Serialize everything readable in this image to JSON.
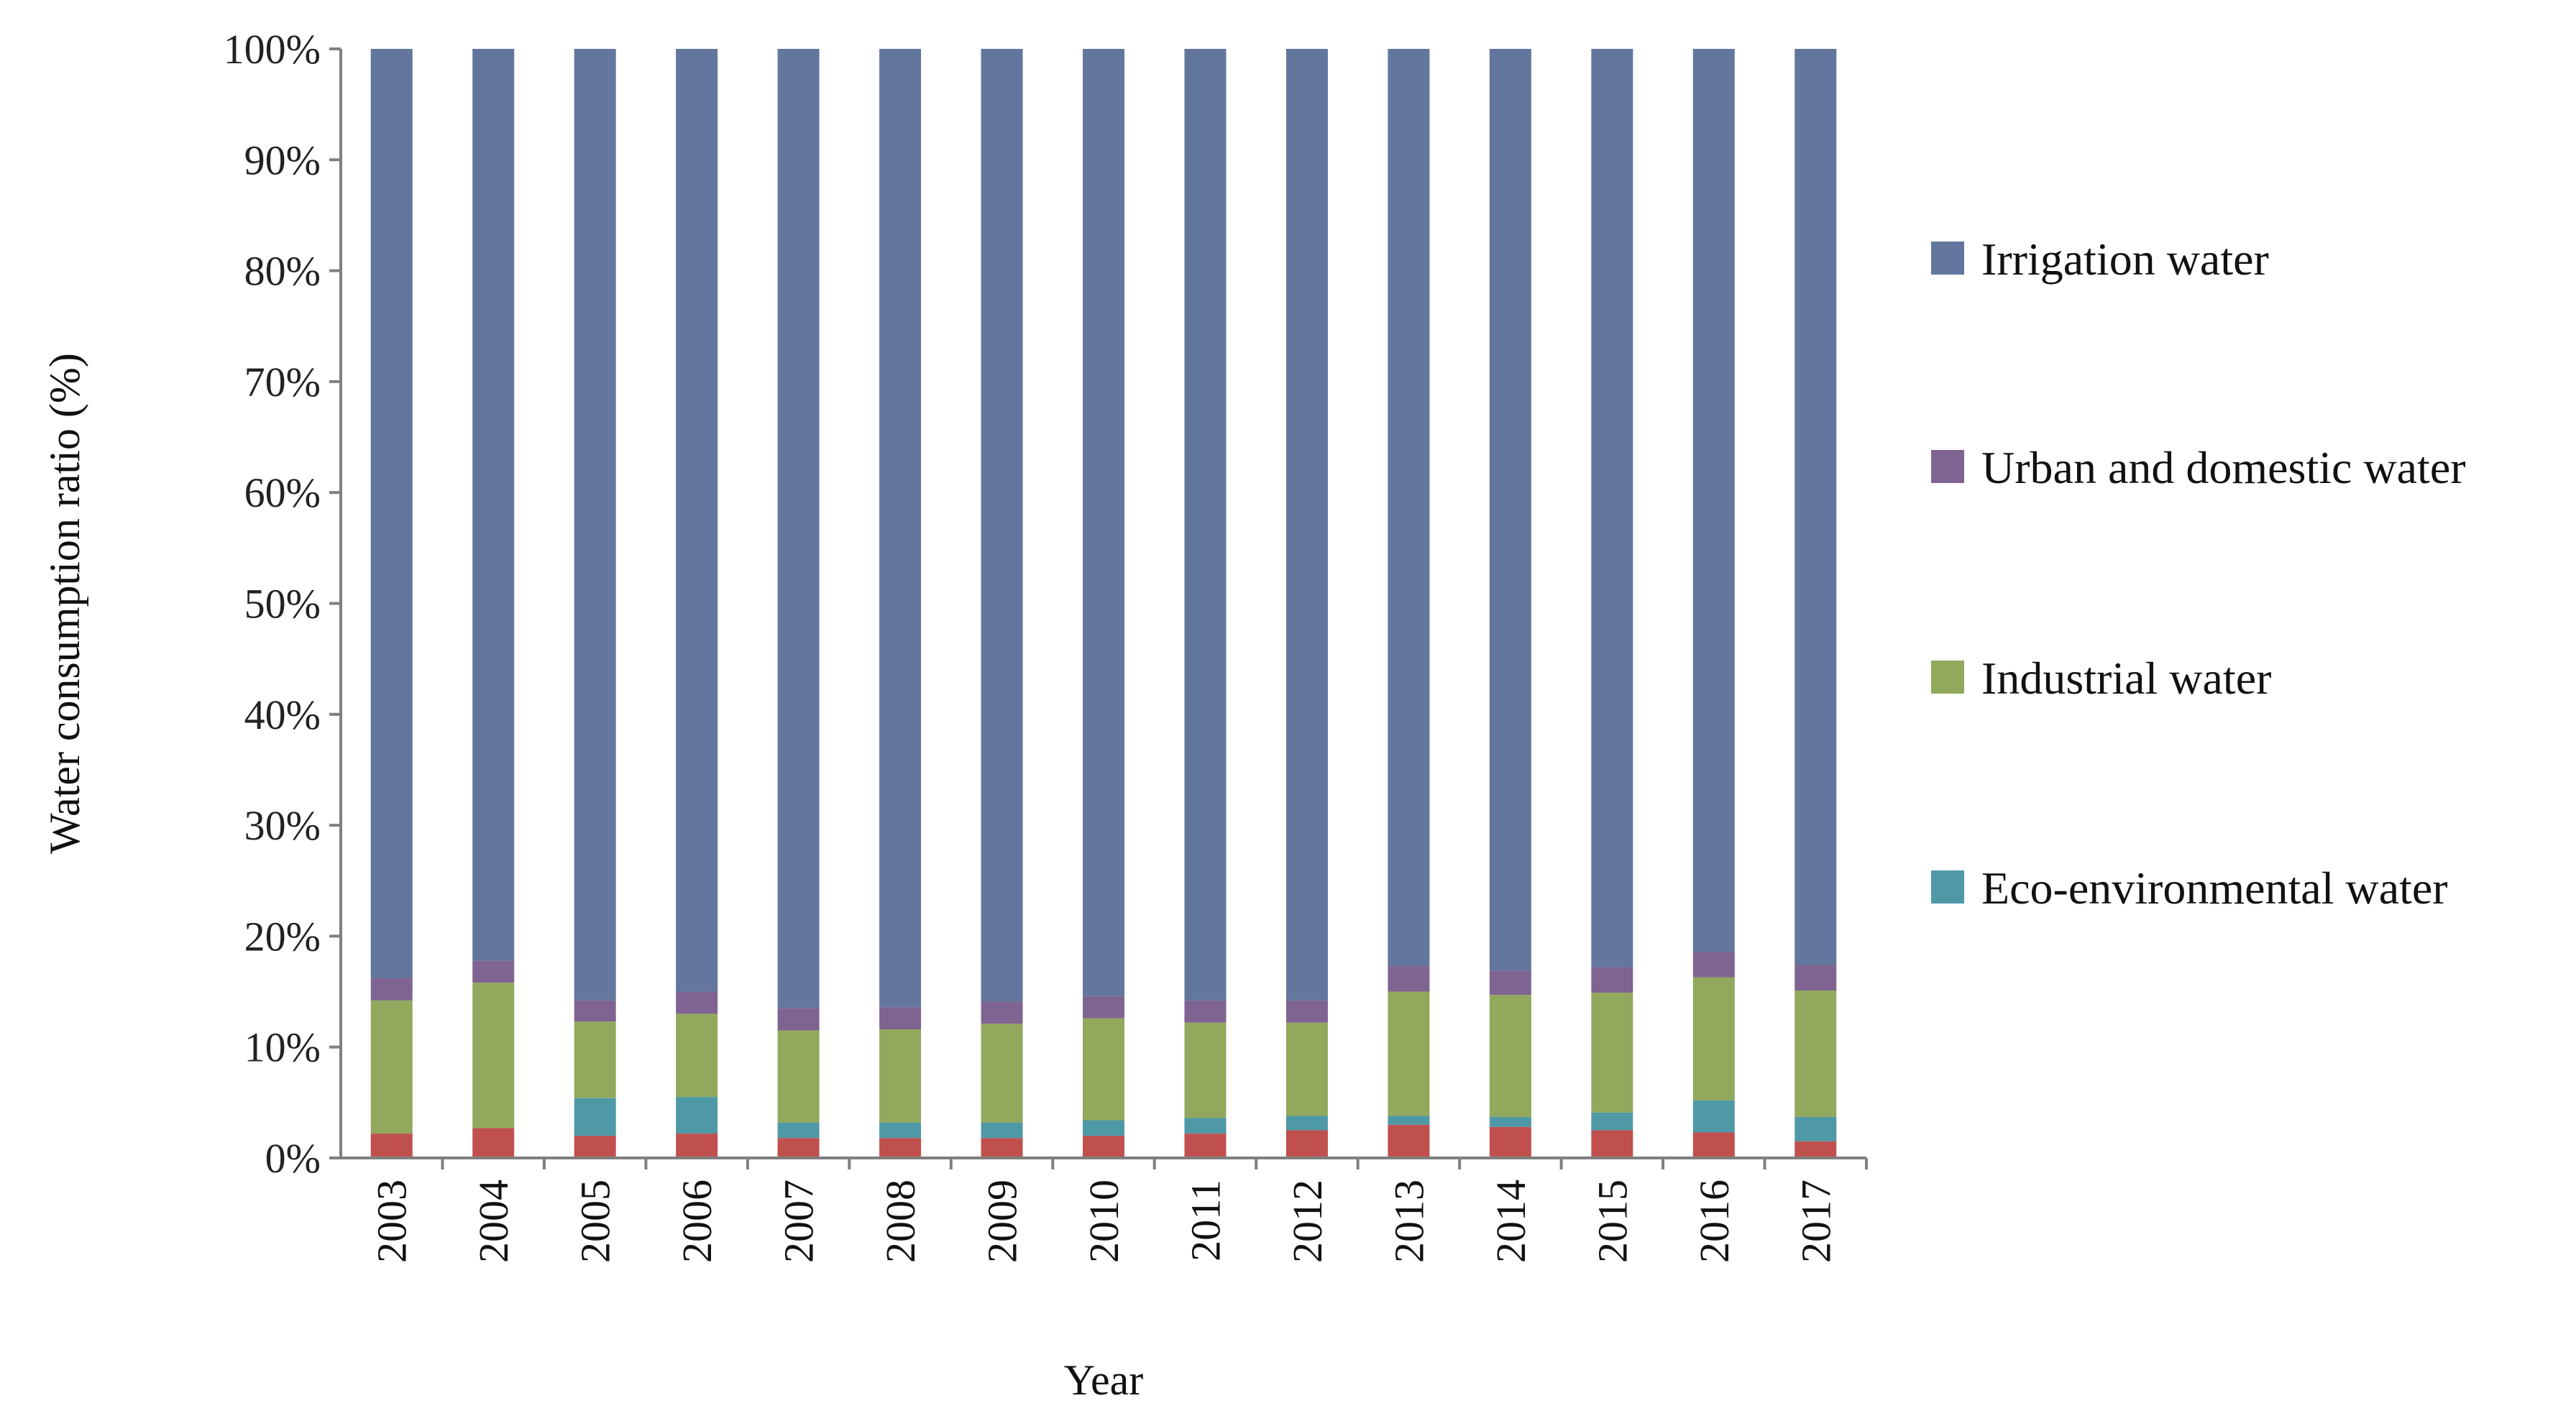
{
  "chart_data": {
    "type": "bar",
    "stacked": true,
    "categories": [
      "2003",
      "2004",
      "2005",
      "2006",
      "2007",
      "2008",
      "2009",
      "2010",
      "2011",
      "2012",
      "2013",
      "2014",
      "2015",
      "2016",
      "2017"
    ],
    "series": [
      {
        "name": "",
        "color": "#c0504d",
        "values": [
          2.2,
          2.7,
          2.0,
          2.2,
          1.8,
          1.8,
          1.8,
          2.0,
          2.2,
          2.5,
          3.0,
          2.8,
          2.5,
          2.3,
          1.5
        ]
      },
      {
        "name": "Eco-environmental water",
        "color": "#4f98a6",
        "values": [
          0.0,
          0.0,
          3.4,
          3.3,
          1.4,
          1.4,
          1.4,
          1.4,
          1.4,
          1.3,
          0.8,
          0.9,
          1.6,
          2.9,
          2.2
        ]
      },
      {
        "name": "Industrial water",
        "color": "#92a85d",
        "values": [
          12.0,
          13.1,
          6.9,
          7.5,
          8.3,
          8.4,
          8.9,
          9.2,
          8.6,
          8.4,
          11.2,
          11.0,
          10.8,
          11.1,
          11.4
        ]
      },
      {
        "name": "Urban and domestic water",
        "color": "#7f6491",
        "values": [
          2.0,
          2.0,
          1.9,
          2.0,
          2.0,
          2.0,
          2.0,
          2.0,
          2.0,
          2.0,
          2.3,
          2.2,
          2.3,
          2.3,
          2.3
        ]
      },
      {
        "name": "Irrigation water",
        "color": "#62769e",
        "values": [
          83.8,
          82.2,
          85.8,
          85.0,
          86.5,
          86.4,
          85.9,
          85.4,
          85.8,
          85.8,
          82.7,
          83.1,
          82.8,
          81.4,
          82.6
        ]
      }
    ],
    "legend": {
      "placement": "right",
      "entries": [
        "Irrigation water",
        "Urban and domestic water",
        "Industrial water",
        "Eco-environmental water"
      ],
      "colors": [
        "#62769e",
        "#7f6491",
        "#92a85d",
        "#4f98a6"
      ]
    },
    "xlabel": "Year",
    "ylabel": "Water consumption ratio (%)",
    "ylim": [
      0,
      100
    ],
    "yticks": [
      "0%",
      "10%",
      "20%",
      "30%",
      "40%",
      "50%",
      "60%",
      "70%",
      "80%",
      "90%",
      "100%"
    ],
    "grid": false
  }
}
